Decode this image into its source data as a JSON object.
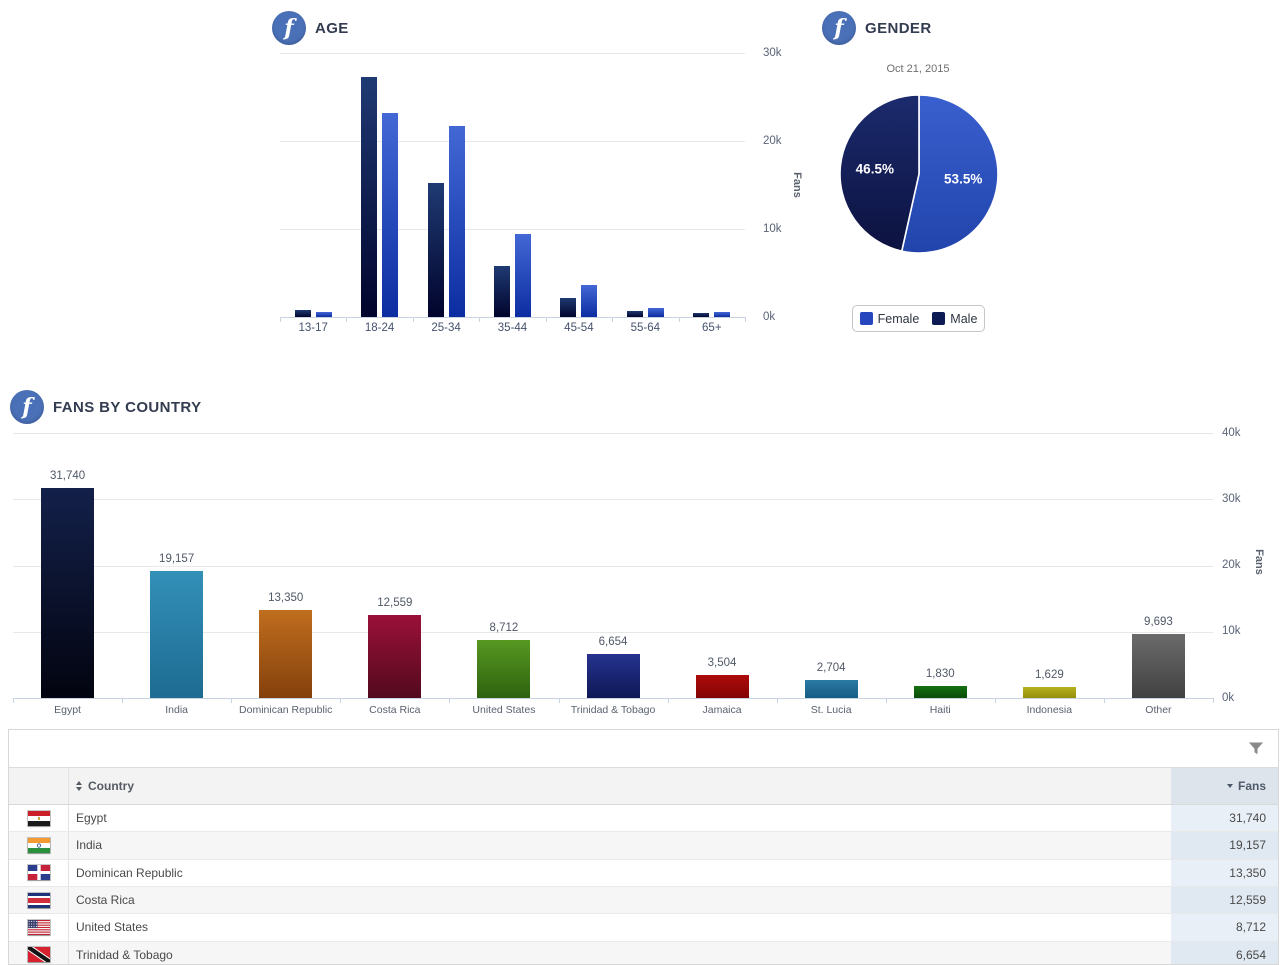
{
  "brand": {
    "icon": "facebook-icon",
    "accent_blue": "#4a70b7"
  },
  "chart_data": [
    {
      "type": "bar",
      "title": "AGE",
      "ylabel": "Fans",
      "categories": [
        "13-17",
        "18-24",
        "25-34",
        "35-44",
        "45-54",
        "55-64",
        "65+"
      ],
      "series": [
        {
          "name": "Male",
          "values": [
            760,
            27300,
            15300,
            5800,
            2200,
            650,
            500
          ],
          "color_top": "#1f3a73",
          "color_bottom": "#01042c"
        },
        {
          "name": "Female",
          "values": [
            600,
            23200,
            21700,
            9400,
            3700,
            990,
            610
          ],
          "color_top": "#4368d5",
          "color_bottom": "#0c2da1"
        }
      ],
      "ylim": [
        0,
        30000
      ],
      "yticks": [
        {
          "label": "30k",
          "value": 30000
        },
        {
          "label": "20k",
          "value": 20000
        },
        {
          "label": "10k",
          "value": 10000
        },
        {
          "label": "0k",
          "value": 0
        }
      ],
      "grid": true,
      "legend_position": "none"
    },
    {
      "type": "pie",
      "title": "GENDER",
      "subtitle": "Oct 21, 2015",
      "slices": [
        {
          "label": "Female",
          "pct": 53.5,
          "display": "53.5%",
          "color_top": "#3a60cf",
          "color_bottom": "#2144ab",
          "legend_color": "#2546bd"
        },
        {
          "label": "Male",
          "pct": 46.5,
          "display": "46.5%",
          "color_top": "#1c2b6e",
          "color_bottom": "#0c123f",
          "legend_color": "#0d1b55"
        }
      ],
      "start_angle": "top",
      "direction": "clockwise",
      "legend_position": "bottom"
    },
    {
      "type": "bar",
      "title": "FANS BY COUNTRY",
      "ylabel": "Fans",
      "categories": [
        "Egypt",
        "India",
        "Dominican Republic",
        "Costa Rica",
        "United States",
        "Trinidad & Tobago",
        "Jamaica",
        "St. Lucia",
        "Haiti",
        "Indonesia",
        "Other"
      ],
      "values": [
        31740,
        19157,
        13350,
        12559,
        8712,
        6654,
        3504,
        2704,
        1830,
        1629,
        9693
      ],
      "value_labels": [
        "31,740",
        "19,157",
        "13,350",
        "12,559",
        "8,712",
        "6,654",
        "3,504",
        "2,704",
        "1,830",
        "1,629",
        "9,693"
      ],
      "colors": [
        {
          "top": "#13204a",
          "bottom": "#02040f"
        },
        {
          "top": "#3390b8",
          "bottom": "#1d6b92"
        },
        {
          "top": "#c06e1e",
          "bottom": "#84400c"
        },
        {
          "top": "#9b1038",
          "bottom": "#520a1e"
        },
        {
          "top": "#579821",
          "bottom": "#2e620f"
        },
        {
          "top": "#26338f",
          "bottom": "#0e1856"
        },
        {
          "top": "#ad0b0b",
          "bottom": "#840404"
        },
        {
          "top": "#2b79a5",
          "bottom": "#155d85"
        },
        {
          "top": "#147011",
          "bottom": "#0a4c09"
        },
        {
          "top": "#b7b120",
          "bottom": "#958e0b"
        },
        {
          "top": "#6b6b6b",
          "bottom": "#414141"
        }
      ],
      "ylim": [
        0,
        40000
      ],
      "yticks": [
        {
          "label": "40k",
          "value": 40000
        },
        {
          "label": "30k",
          "value": 30000
        },
        {
          "label": "20k",
          "value": 20000
        },
        {
          "label": "10k",
          "value": 10000
        },
        {
          "label": "0k",
          "value": 0
        }
      ],
      "grid": true,
      "legend_position": "none"
    }
  ],
  "table": {
    "icons": {
      "filter": "filter-funnel-icon",
      "sort_country": "sort-both-icon",
      "sort_fans": "sort-desc-icon"
    },
    "columns": [
      {
        "label": "Country",
        "sort": "both"
      },
      {
        "label": "Fans",
        "sort": "desc"
      }
    ],
    "rows": [
      {
        "flag": "egypt",
        "country": "Egypt",
        "fans": "31,740"
      },
      {
        "flag": "india",
        "country": "India",
        "fans": "19,157"
      },
      {
        "flag": "dominican-republic",
        "country": "Dominican Republic",
        "fans": "13,350"
      },
      {
        "flag": "costa-rica",
        "country": "Costa Rica",
        "fans": "12,559"
      },
      {
        "flag": "united-states",
        "country": "United States",
        "fans": "8,712"
      },
      {
        "flag": "trinidad-tobago",
        "country": "Trinidad & Tobago",
        "fans": "6,654"
      }
    ]
  }
}
